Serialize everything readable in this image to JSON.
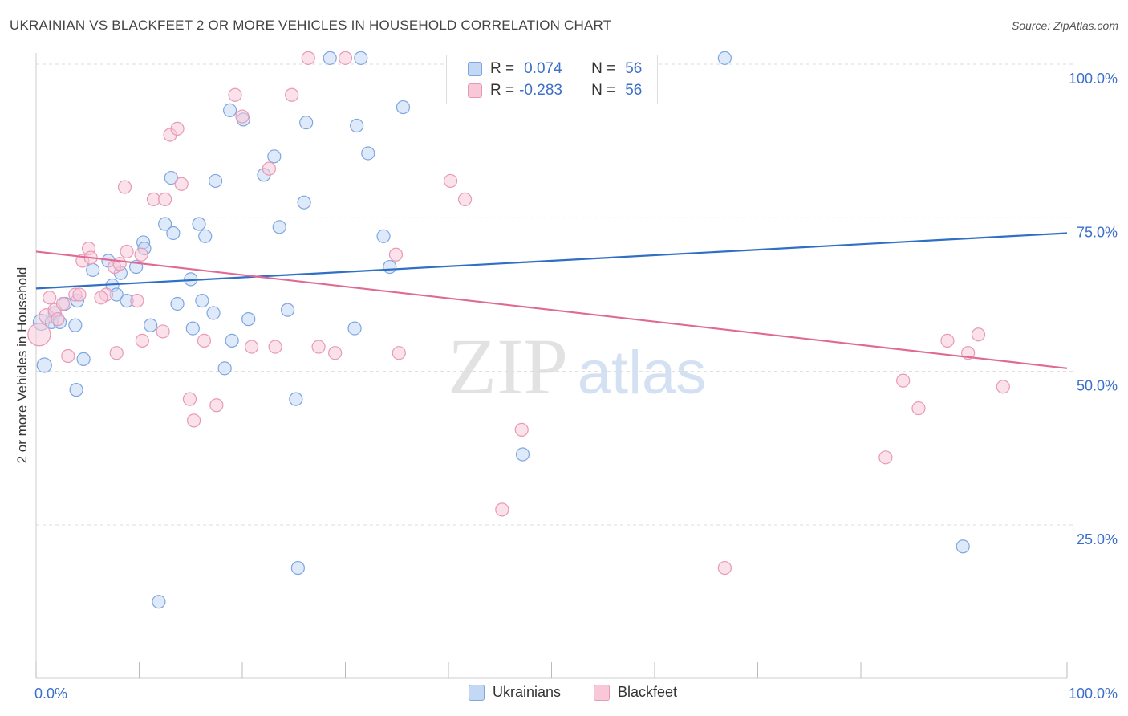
{
  "header": {
    "title": "UKRAINIAN VS BLACKFEET 2 OR MORE VEHICLES IN HOUSEHOLD CORRELATION CHART",
    "source": "Source: ZipAtlas.com"
  },
  "legend": {
    "ukrainians": {
      "r_label": "R =",
      "r_value": "0.074",
      "n_label": "N =",
      "n_value": "56"
    },
    "blackfeet": {
      "r_label": "R =",
      "r_value": "-0.283",
      "n_label": "N =",
      "n_value": "56"
    },
    "bottom": {
      "ukrainians": "Ukrainians",
      "blackfeet": "Blackfeet"
    }
  },
  "watermark": {
    "zip": "ZIP",
    "atlas": "atlas"
  },
  "chart_data": {
    "type": "scatter",
    "title": "UKRAINIAN VS BLACKFEET 2 OR MORE VEHICLES IN HOUSEHOLD CORRELATION CHART",
    "xlabel": "",
    "ylabel": "2 or more Vehicles in Household",
    "xlim": [
      0,
      100
    ],
    "ylim": [
      0,
      105
    ],
    "x_tick_labels": [
      "0.0%",
      "100.0%"
    ],
    "y_ticks": [
      {
        "value": 25,
        "label": "25.0%"
      },
      {
        "value": 50,
        "label": "50.0%"
      },
      {
        "value": 75,
        "label": "75.0%"
      },
      {
        "value": 100,
        "label": "100.0%"
      }
    ],
    "colors": {
      "ukrainians": "#7ea6e0",
      "ukrainians_fill": "#c3d8f5",
      "ukrainians_line": "#2f6fc6",
      "blackfeet": "#e89ab4",
      "blackfeet_fill": "#f8c8d8",
      "blackfeet_line": "#e06a96"
    },
    "series": [
      {
        "name": "Ukrainians",
        "trend": {
          "x": [
            0,
            100
          ],
          "y": [
            63.5,
            72.5
          ]
        },
        "points": [
          [
            0.5,
            58,
            10
          ],
          [
            0.8,
            51,
            9
          ],
          [
            1.5,
            58,
            8
          ],
          [
            1.8,
            59.5,
            8
          ],
          [
            2.3,
            58,
            8
          ],
          [
            2.8,
            61,
            8
          ],
          [
            3.8,
            57.5,
            8
          ],
          [
            4,
            61.5,
            8
          ],
          [
            3.9,
            47,
            8
          ],
          [
            4.6,
            52,
            8
          ],
          [
            5.5,
            66.5,
            8
          ],
          [
            7.0,
            68,
            8
          ],
          [
            7.4,
            64,
            8
          ],
          [
            7.8,
            62.5,
            8
          ],
          [
            8.2,
            66,
            8
          ],
          [
            8.8,
            61.5,
            8
          ],
          [
            9.7,
            67,
            8
          ],
          [
            10.4,
            71,
            8
          ],
          [
            10.5,
            70,
            8
          ],
          [
            11.1,
            57.5,
            8
          ],
          [
            12.5,
            74,
            8
          ],
          [
            13.3,
            72.5,
            8
          ],
          [
            13.7,
            61,
            8
          ],
          [
            13.1,
            81.5,
            8
          ],
          [
            15.0,
            65,
            8
          ],
          [
            15.2,
            57,
            8
          ],
          [
            15.8,
            74,
            8
          ],
          [
            16.1,
            61.5,
            8
          ],
          [
            16.4,
            72,
            8
          ],
          [
            17.2,
            59.5,
            8
          ],
          [
            17.4,
            81,
            8
          ],
          [
            18.3,
            50.5,
            8
          ],
          [
            18.8,
            92.5,
            8
          ],
          [
            19.0,
            55,
            8
          ],
          [
            20.1,
            91,
            8
          ],
          [
            20.6,
            58.5,
            8
          ],
          [
            22.1,
            82,
            8
          ],
          [
            23.1,
            85,
            8
          ],
          [
            23.6,
            73.5,
            8
          ],
          [
            24.4,
            60,
            8
          ],
          [
            25.2,
            45.5,
            8
          ],
          [
            25.4,
            18,
            8
          ],
          [
            26.0,
            77.5,
            8
          ],
          [
            26.2,
            90.5,
            8
          ],
          [
            28.5,
            101,
            8
          ],
          [
            30.9,
            57,
            8
          ],
          [
            31.1,
            90,
            8
          ],
          [
            31.5,
            101,
            8
          ],
          [
            32.2,
            85.5,
            8
          ],
          [
            33.7,
            72,
            8
          ],
          [
            34.3,
            67,
            8
          ],
          [
            35.6,
            93,
            8
          ],
          [
            47.2,
            36.5,
            8
          ],
          [
            66.8,
            101,
            8
          ],
          [
            89.9,
            21.5,
            8
          ],
          [
            11.9,
            12.5,
            8
          ]
        ]
      },
      {
        "name": "Blackfeet",
        "trend": {
          "x": [
            0,
            100
          ],
          "y": [
            69.5,
            50.5
          ]
        },
        "points": [
          [
            0.3,
            56,
            14
          ],
          [
            1.0,
            59,
            9
          ],
          [
            1.3,
            62,
            8
          ],
          [
            1.8,
            60,
            8
          ],
          [
            2.6,
            61,
            8
          ],
          [
            3.1,
            52.5,
            8
          ],
          [
            3.8,
            62.5,
            8
          ],
          [
            4.5,
            68,
            8
          ],
          [
            5.1,
            70,
            8
          ],
          [
            5.3,
            68.5,
            8
          ],
          [
            6.8,
            62.5,
            8
          ],
          [
            7.6,
            67,
            8
          ],
          [
            7.8,
            53,
            8
          ],
          [
            8.1,
            67.5,
            8
          ],
          [
            8.6,
            80,
            8
          ],
          [
            8.8,
            69.5,
            8
          ],
          [
            9.8,
            61.5,
            8
          ],
          [
            10.3,
            55,
            8
          ],
          [
            11.4,
            78,
            8
          ],
          [
            12.3,
            56.5,
            8
          ],
          [
            12.5,
            78,
            8
          ],
          [
            13.0,
            88.5,
            8
          ],
          [
            13.7,
            89.5,
            8
          ],
          [
            14.1,
            80.5,
            8
          ],
          [
            14.9,
            45.5,
            8
          ],
          [
            15.3,
            42,
            8
          ],
          [
            16.3,
            55,
            8
          ],
          [
            17.5,
            44.5,
            8
          ],
          [
            19.3,
            95,
            8
          ],
          [
            20.0,
            91.5,
            8
          ],
          [
            20.9,
            54,
            8
          ],
          [
            22.6,
            83,
            8
          ],
          [
            23.2,
            54,
            8
          ],
          [
            24.8,
            95,
            8
          ],
          [
            26.4,
            101,
            8
          ],
          [
            27.4,
            54,
            8
          ],
          [
            29.0,
            53,
            8
          ],
          [
            30.0,
            101,
            8
          ],
          [
            34.9,
            69,
            8
          ],
          [
            35.2,
            53,
            8
          ],
          [
            40.2,
            81,
            8
          ],
          [
            41.6,
            78,
            8
          ],
          [
            45.2,
            27.5,
            8
          ],
          [
            47.1,
            40.5,
            8
          ],
          [
            66.8,
            18,
            8
          ],
          [
            82.4,
            36,
            8
          ],
          [
            84.1,
            48.5,
            8
          ],
          [
            85.6,
            44,
            8
          ],
          [
            88.4,
            55,
            8
          ],
          [
            90.4,
            53,
            8
          ],
          [
            91.4,
            56,
            8
          ],
          [
            93.8,
            47.5,
            8
          ],
          [
            10.2,
            69,
            8
          ],
          [
            4.2,
            62.5,
            8
          ],
          [
            2.1,
            58.5,
            8
          ],
          [
            6.3,
            62,
            8
          ]
        ]
      }
    ]
  }
}
